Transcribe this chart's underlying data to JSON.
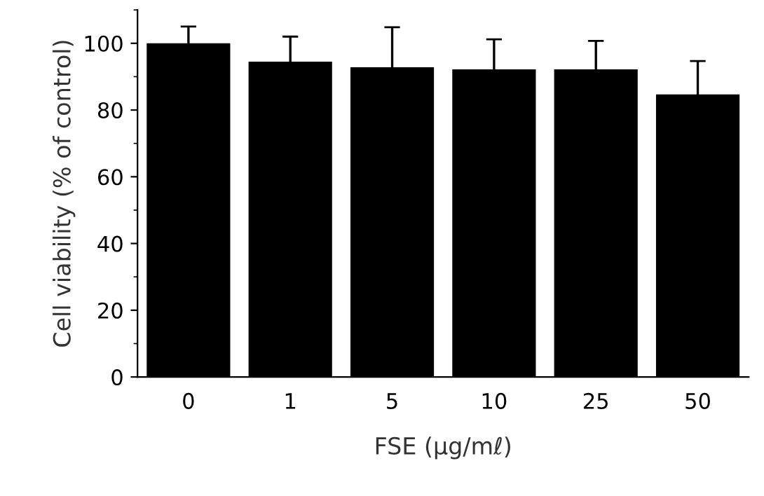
{
  "chart_data": {
    "type": "bar",
    "xlabel": "FSE (μg/mℓ)",
    "ylabel": "Cell viability (% of control)",
    "categories": [
      "0",
      "1",
      "5",
      "10",
      "25",
      "50"
    ],
    "values": [
      100,
      94.5,
      92.8,
      92.2,
      92.2,
      84.7
    ],
    "errors": [
      5,
      7.5,
      12,
      9,
      8.5,
      10
    ],
    "color": "#000000",
    "ylim": [
      0,
      110
    ],
    "yticks": [
      0,
      20,
      40,
      60,
      80,
      100
    ],
    "grid": false,
    "legend": false
  }
}
